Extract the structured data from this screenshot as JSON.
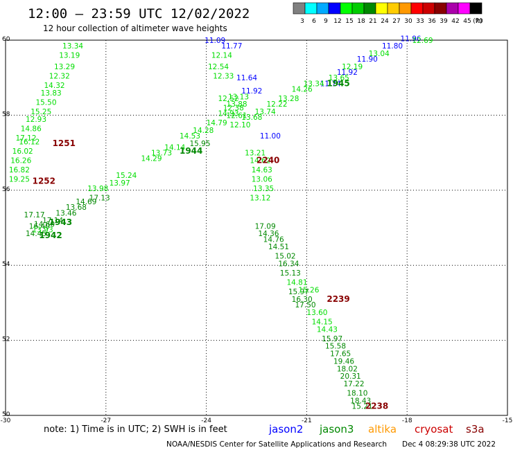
{
  "chart_data": {
    "type": "scatter",
    "title": "12:00 – 23:59 UTC 12/02/2022",
    "subtitle": "12 hour collection of altimeter wave heights",
    "xlim": [
      -30,
      -15
    ],
    "ylim": [
      50,
      60
    ],
    "x_ticks": [
      "-30",
      "-27",
      "-24",
      "-21",
      "-18",
      "-15"
    ],
    "x_tick_values": [
      -30,
      -27,
      -24,
      -21,
      -18,
      -15
    ],
    "y_ticks": [
      "60",
      "58",
      "56",
      "54",
      "52",
      "50"
    ],
    "y_tick_values": [
      60,
      58,
      56,
      54,
      52,
      50
    ],
    "grid": "dotted",
    "legend": {
      "placement": "top-right",
      "bins": [
        "3",
        "6",
        "9",
        "12",
        "15",
        "18",
        "21",
        "24",
        "27",
        "30",
        "33",
        "36",
        "39",
        "42",
        "45",
        "70"
      ],
      "unit": "(ft)",
      "colors": [
        "#808080",
        "#00ffff",
        "#00aaff",
        "#0000ff",
        "#00ff00",
        "#00cc00",
        "#008800",
        "#ffff00",
        "#ffcc00",
        "#ff9900",
        "#ff0000",
        "#cc0000",
        "#880000",
        "#aa00aa",
        "#ff00ff",
        "#000000"
      ]
    },
    "series": [
      {
        "name": "jason2",
        "color": "#0000ff",
        "points": [
          {
            "x": -23.55,
            "y": 59.85,
            "label": "11.77"
          },
          {
            "x": -23.1,
            "y": 59.0,
            "label": "11.64"
          },
          {
            "x": -22.95,
            "y": 58.65,
            "label": "11.92"
          },
          {
            "x": -22.4,
            "y": 57.45,
            "label": "11.00"
          },
          {
            "x": -20.6,
            "y": 58.85,
            "label": "11.74"
          },
          {
            "x": -20.1,
            "y": 59.15,
            "label": "11.92"
          },
          {
            "x": -19.5,
            "y": 59.5,
            "label": "11.90"
          },
          {
            "x": -18.75,
            "y": 59.85,
            "label": "11.80"
          },
          {
            "x": -18.2,
            "y": 60.05,
            "label": "11.96"
          }
        ]
      },
      {
        "name": "jason3",
        "color": "#008800",
        "points": [
          {
            "x": -29.45,
            "y": 55.35,
            "label": "17.17"
          },
          {
            "x": -28.9,
            "y": 55.2,
            "label": "17.14"
          },
          {
            "x": -29.3,
            "y": 55.05,
            "label": "16.40"
          },
          {
            "x": -29.15,
            "y": 55.1,
            "label": "14.60"
          },
          {
            "x": -29.4,
            "y": 54.85,
            "label": "14.45"
          },
          {
            "x": -28.5,
            "y": 55.4,
            "label": "13.46"
          },
          {
            "x": -28.2,
            "y": 55.55,
            "label": "13.68"
          },
          {
            "x": -27.9,
            "y": 55.7,
            "label": "14.69"
          },
          {
            "x": -27.5,
            "y": 55.8,
            "label": "17.13"
          },
          {
            "x": -24.5,
            "y": 57.25,
            "label": "15.95"
          },
          {
            "x": -22.55,
            "y": 55.05,
            "label": "17.09"
          },
          {
            "x": -22.45,
            "y": 54.85,
            "label": "14.36"
          },
          {
            "x": -22.3,
            "y": 54.7,
            "label": "14.76"
          },
          {
            "x": -22.15,
            "y": 54.5,
            "label": "14.51"
          },
          {
            "x": -21.95,
            "y": 54.25,
            "label": "15.02"
          },
          {
            "x": -21.85,
            "y": 54.05,
            "label": "16.34"
          },
          {
            "x": -21.8,
            "y": 53.8,
            "label": "15.13"
          },
          {
            "x": -21.55,
            "y": 53.3,
            "label": "15.97"
          },
          {
            "x": -21.45,
            "y": 53.1,
            "label": "16.30"
          },
          {
            "x": -21.35,
            "y": 52.95,
            "label": "17.50"
          },
          {
            "x": -20.55,
            "y": 52.05,
            "label": "15.97"
          },
          {
            "x": -20.45,
            "y": 51.85,
            "label": "15.58"
          },
          {
            "x": -20.3,
            "y": 51.65,
            "label": "17.65"
          },
          {
            "x": -20.2,
            "y": 51.45,
            "label": "19.46"
          },
          {
            "x": -20.1,
            "y": 51.25,
            "label": "18.02"
          },
          {
            "x": -20.0,
            "y": 51.05,
            "label": "20.31"
          },
          {
            "x": -19.9,
            "y": 50.85,
            "label": "17.22"
          },
          {
            "x": -19.8,
            "y": 50.6,
            "label": "18.10"
          },
          {
            "x": -19.7,
            "y": 50.4,
            "label": "18.43"
          },
          {
            "x": -19.65,
            "y": 50.25,
            "label": "15.21"
          }
        ]
      },
      {
        "name": "cryosat",
        "color": "#00dd00",
        "points": [
          {
            "x": -28.3,
            "y": 59.85,
            "label": "13.34"
          },
          {
            "x": -28.4,
            "y": 59.6,
            "label": "13.19"
          },
          {
            "x": -28.55,
            "y": 59.3,
            "label": "13.29"
          },
          {
            "x": -28.7,
            "y": 59.05,
            "label": "12.32"
          },
          {
            "x": -28.85,
            "y": 58.8,
            "label": "14.32"
          },
          {
            "x": -28.95,
            "y": 58.6,
            "label": "13.83"
          },
          {
            "x": -29.1,
            "y": 58.35,
            "label": "15.50"
          },
          {
            "x": -29.25,
            "y": 58.1,
            "label": "15.25"
          },
          {
            "x": -29.4,
            "y": 57.9,
            "label": "12.93"
          },
          {
            "x": -29.55,
            "y": 57.65,
            "label": "14.86"
          },
          {
            "x": -29.7,
            "y": 57.4,
            "label": "17.12"
          },
          {
            "x": -29.6,
            "y": 57.3,
            "label": "16.12"
          },
          {
            "x": -29.8,
            "y": 57.05,
            "label": "16.02"
          },
          {
            "x": -29.85,
            "y": 56.8,
            "label": "16.26"
          },
          {
            "x": -29.9,
            "y": 56.55,
            "label": "16.82"
          },
          {
            "x": -29.9,
            "y": 56.3,
            "label": "19.25"
          },
          {
            "x": -23.85,
            "y": 59.6,
            "label": "12.14"
          },
          {
            "x": -23.95,
            "y": 59.3,
            "label": "12.54"
          },
          {
            "x": -23.8,
            "y": 59.05,
            "label": "12.33"
          },
          {
            "x": -23.65,
            "y": 58.45,
            "label": "12.52"
          },
          {
            "x": -23.5,
            "y": 58.2,
            "label": "12.38"
          },
          {
            "x": -23.4,
            "y": 58.0,
            "label": "12.61"
          },
          {
            "x": -23.3,
            "y": 57.75,
            "label": "12.10"
          },
          {
            "x": -22.85,
            "y": 57.0,
            "label": "13.21"
          },
          {
            "x": -22.7,
            "y": 56.8,
            "label": "14.62"
          },
          {
            "x": -22.65,
            "y": 56.55,
            "label": "14.63"
          },
          {
            "x": -22.65,
            "y": 56.3,
            "label": "13.06"
          },
          {
            "x": -22.6,
            "y": 56.05,
            "label": "13.35"
          },
          {
            "x": -22.7,
            "y": 55.8,
            "label": "13.12"
          },
          {
            "x": -21.6,
            "y": 53.55,
            "label": "14.81"
          },
          {
            "x": -21.25,
            "y": 53.35,
            "label": "15.26"
          },
          {
            "x": -21.0,
            "y": 52.75,
            "label": "13.60"
          },
          {
            "x": -20.85,
            "y": 52.5,
            "label": "14.15"
          },
          {
            "x": -20.7,
            "y": 52.3,
            "label": "14.43"
          },
          {
            "x": -29.2,
            "y": 54.95,
            "label": "13.93"
          },
          {
            "x": -27.55,
            "y": 56.05,
            "label": "13.98"
          },
          {
            "x": -26.7,
            "y": 56.4,
            "label": "15.24"
          },
          {
            "x": -26.9,
            "y": 56.2,
            "label": "13.97"
          },
          {
            "x": -25.95,
            "y": 56.85,
            "label": "14.29"
          },
          {
            "x": -25.65,
            "y": 57.0,
            "label": "13.73"
          },
          {
            "x": -25.25,
            "y": 57.15,
            "label": "14.14"
          },
          {
            "x": -24.8,
            "y": 57.45,
            "label": "14.53"
          },
          {
            "x": -24.4,
            "y": 57.6,
            "label": "14.28"
          },
          {
            "x": -24.0,
            "y": 57.8,
            "label": "14.79"
          },
          {
            "x": -23.65,
            "y": 58.05,
            "label": "14.93"
          },
          {
            "x": -23.4,
            "y": 58.3,
            "label": "13.88"
          },
          {
            "x": -23.35,
            "y": 58.5,
            "label": "13.13"
          },
          {
            "x": -22.55,
            "y": 58.1,
            "label": "13.74"
          },
          {
            "x": -22.2,
            "y": 58.3,
            "label": "12.22"
          },
          {
            "x": -21.85,
            "y": 58.45,
            "label": "13.28"
          },
          {
            "x": -21.45,
            "y": 58.7,
            "label": "14.26"
          },
          {
            "x": -21.1,
            "y": 58.85,
            "label": "13.34"
          },
          {
            "x": -20.35,
            "y": 59.0,
            "label": "13.65"
          },
          {
            "x": -19.95,
            "y": 59.3,
            "label": "12.19"
          },
          {
            "x": -19.15,
            "y": 59.65,
            "label": "13.04"
          },
          {
            "x": -17.85,
            "y": 60.0,
            "label": "12.69"
          },
          {
            "x": -22.95,
            "y": 57.95,
            "label": "13.68"
          }
        ]
      }
    ],
    "extra_labels": [
      {
        "x": -24.05,
        "y": 60.0,
        "label": "11.09",
        "color": "#0000ff"
      }
    ],
    "pass_labels": [
      {
        "x": -28.6,
        "y": 57.25,
        "label": "1251",
        "color": "#880000"
      },
      {
        "x": -29.2,
        "y": 56.25,
        "label": "1252",
        "color": "#880000"
      },
      {
        "x": -24.8,
        "y": 57.05,
        "label": "1944",
        "color": "#008800"
      },
      {
        "x": -28.7,
        "y": 55.15,
        "label": "1943",
        "color": "#008800"
      },
      {
        "x": -29.0,
        "y": 54.8,
        "label": "1942",
        "color": "#008800"
      },
      {
        "x": -22.5,
        "y": 56.8,
        "label": "2240",
        "color": "#880000"
      },
      {
        "x": -20.4,
        "y": 58.85,
        "label": "1945",
        "color": "#008800"
      },
      {
        "x": -20.4,
        "y": 53.1,
        "label": "2239",
        "color": "#880000"
      },
      {
        "x": -19.25,
        "y": 50.25,
        "label": "2238",
        "color": "#880000"
      }
    ]
  },
  "footer": {
    "note": "note:  1) Time is in UTC; 2) SWH is in feet",
    "satellites": [
      {
        "name": "jason2",
        "color": "#0000ff"
      },
      {
        "name": "jason3",
        "color": "#008800"
      },
      {
        "name": "altika",
        "color": "#ff9900"
      },
      {
        "name": "cryosat",
        "color": "#cc0000"
      },
      {
        "name": "s3a",
        "color": "#880000"
      }
    ],
    "credit": "NOAA/NESDIS Center for Satellite Applications and Research",
    "timestamp": "Dec  4 08:29:38 UTC 2022"
  }
}
